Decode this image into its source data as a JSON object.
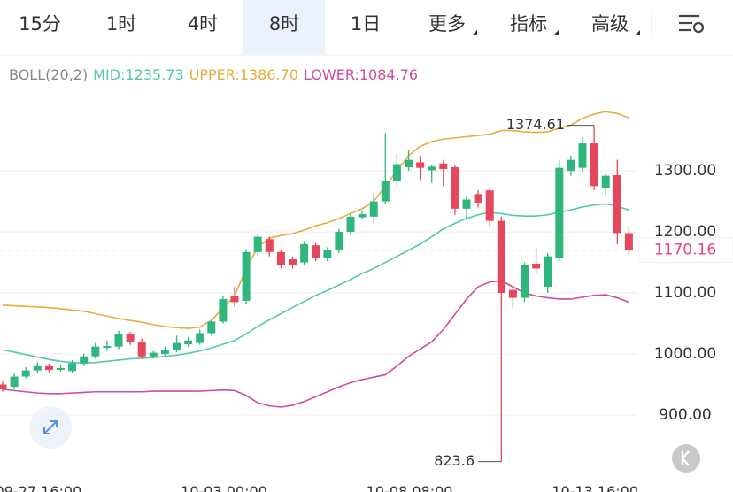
{
  "tabs": [
    "15分",
    "1时",
    "4时",
    "8时",
    "1日",
    "更多",
    "指标",
    "高级"
  ],
  "active_tab": 3,
  "chart_data": {
    "type": "candlestick",
    "indicator": "BOLL(20,2)",
    "categories": [
      null,
      null,
      null,
      null,
      "09-27 16:00",
      null,
      null,
      null,
      null,
      null,
      null,
      null,
      null,
      null,
      null,
      null,
      null,
      null,
      null,
      null,
      "10-03 00:00",
      null,
      null,
      null,
      null,
      null,
      null,
      null,
      null,
      null,
      null,
      null,
      null,
      null,
      null,
      null,
      "10-08 08:00",
      null,
      null,
      null,
      null,
      null,
      null,
      null,
      null,
      null,
      null,
      null,
      null,
      null,
      null,
      null,
      "10-13 16:00",
      null,
      null
    ],
    "open": [
      950,
      946,
      963,
      973,
      980,
      974,
      972,
      985,
      996,
      1010,
      1012,
      1032,
      1020,
      996,
      1000,
      1006,
      1016,
      1018,
      1034,
      1053,
      1095,
      1087,
      1167,
      1188,
      1167,
      1155,
      1150,
      1178,
      1158,
      1170,
      1200,
      1224,
      1225,
      1250,
      1283,
      1306,
      1314,
      1301,
      1312,
      1306,
      1238,
      1262,
      1268,
      1218,
      1105,
      1092,
      1148,
      1110,
      1158,
      1300,
      1305,
      1345,
      1272,
      1293,
      1198
    ],
    "high": [
      955,
      968,
      978,
      986,
      984,
      981,
      990,
      1000,
      1018,
      1022,
      1038,
      1036,
      1025,
      1005,
      1012,
      1030,
      1028,
      1040,
      1058,
      1096,
      1110,
      1172,
      1196,
      1192,
      1170,
      1160,
      1185,
      1182,
      1175,
      1205,
      1230,
      1235,
      1262,
      1362,
      1328,
      1335,
      1325,
      1310,
      1318,
      1310,
      1258,
      1268,
      1272,
      1225,
      1110,
      1150,
      1175,
      1165,
      1318,
      1325,
      1355,
      1374.61,
      1295,
      1318,
      1210
    ],
    "low": [
      938,
      942,
      960,
      968,
      970,
      971,
      968,
      980,
      992,
      1005,
      1008,
      1015,
      992,
      993,
      997,
      1003,
      1012,
      1015,
      1030,
      1050,
      1078,
      1082,
      1160,
      1160,
      1140,
      1140,
      1145,
      1152,
      1152,
      1165,
      1195,
      1220,
      1215,
      1245,
      1275,
      1300,
      1285,
      1280,
      1275,
      1228,
      1220,
      1240,
      1210,
      823.6,
      1075,
      1085,
      1130,
      1100,
      1152,
      1292,
      1298,
      1268,
      1260,
      1180,
      1162
    ],
    "close": [
      942,
      963,
      973,
      980,
      974,
      977,
      985,
      996,
      1012,
      1013,
      1032,
      1020,
      996,
      1002,
      1006,
      1018,
      1022,
      1034,
      1053,
      1090,
      1085,
      1167,
      1192,
      1167,
      1145,
      1145,
      1180,
      1158,
      1170,
      1200,
      1225,
      1229,
      1250,
      1283,
      1311,
      1318,
      1305,
      1307,
      1303,
      1238,
      1253,
      1248,
      1218,
      1100,
      1092,
      1145,
      1140,
      1160,
      1305,
      1318,
      1345,
      1275,
      1292,
      1198,
      1170.16
    ],
    "up_color": "#2fb67c",
    "down_color": "#e5475c",
    "series": [
      {
        "name": "MID:",
        "color": "#52c9aa",
        "values": [
          1007,
          1003,
          999,
          995,
          991,
          988,
          986,
          985,
          986,
          988,
          990,
          992,
          993,
          994,
          996,
          998,
          1001,
          1005,
          1010,
          1016,
          1022,
          1033,
          1045,
          1056,
          1066,
          1076,
          1086,
          1096,
          1104,
          1113,
          1122,
          1132,
          1140,
          1150,
          1160,
          1170,
          1180,
          1192,
          1205,
          1214,
          1222,
          1228,
          1232,
          1230,
          1227,
          1226,
          1226,
          1228,
          1232,
          1236,
          1241,
          1244,
          1246,
          1242,
          1235.73
        ]
      },
      {
        "name": "UPPER:",
        "color": "#e6ac3e",
        "values": [
          1080,
          1079,
          1078,
          1077,
          1076,
          1074,
          1072,
          1070,
          1066,
          1062,
          1058,
          1055,
          1052,
          1048,
          1045,
          1043,
          1042,
          1044,
          1055,
          1075,
          1095,
          1140,
          1175,
          1190,
          1194,
          1197,
          1203,
          1210,
          1215,
          1222,
          1230,
          1238,
          1250,
          1275,
          1300,
          1325,
          1340,
          1348,
          1352,
          1354,
          1356,
          1358,
          1360,
          1366,
          1366,
          1364,
          1363,
          1364,
          1370,
          1375,
          1386,
          1393,
          1397,
          1394,
          1386.7
        ],
        "value_labels_last": "1386.70"
      },
      {
        "name": "LOWER:",
        "color": "#cf4c9c",
        "values": [
          942,
          940,
          938,
          936,
          935,
          935,
          936,
          937,
          938,
          938,
          938,
          938,
          938,
          939,
          939,
          939,
          939,
          939,
          940,
          941,
          940,
          932,
          920,
          915,
          913,
          916,
          922,
          930,
          938,
          946,
          953,
          958,
          962,
          966,
          980,
          996,
          1008,
          1020,
          1040,
          1065,
          1090,
          1110,
          1118,
          1120,
          1110,
          1100,
          1095,
          1092,
          1090,
          1090,
          1093,
          1096,
          1097,
          1092,
          1084.76
        ]
      }
    ],
    "last_price": {
      "value": 1170.16,
      "label": "1170.16"
    },
    "ylim": [
      797,
      1435
    ],
    "yticks": [
      {
        "value": 900,
        "label": "900.00"
      },
      {
        "value": 1000,
        "label": "1000.00"
      },
      {
        "value": 1100,
        "label": "1100.00"
      },
      {
        "value": 1200,
        "label": "1200.00"
      },
      {
        "value": 1300,
        "label": "1300.00"
      }
    ],
    "annotations": [
      {
        "text": "1374.61",
        "index": 51
      },
      {
        "text": "823.60",
        "index": 43
      }
    ],
    "grid": true
  }
}
